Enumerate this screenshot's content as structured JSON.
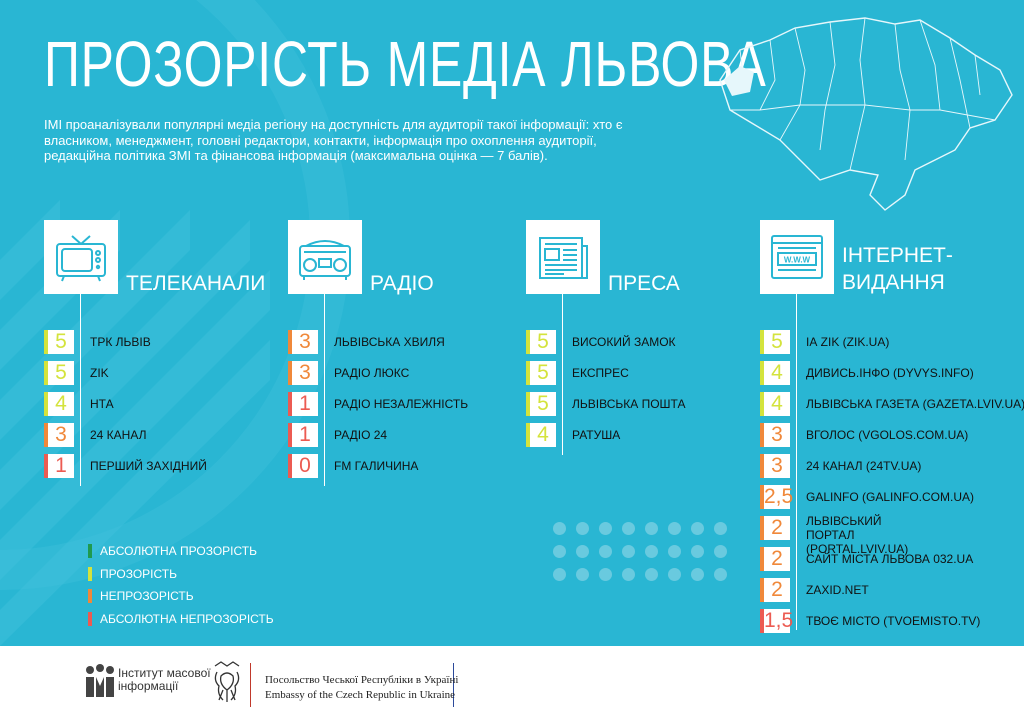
{
  "title": "ПРОЗОРІСТЬ МЕДІА ЛЬВОВА",
  "intro": "ІМІ проаналізували популярні медіа регіону на доступність для аудиторії такої інформації: хто є власником, менеджмент, головні редактори, контакти, інформація про охоплення аудиторії, редакційна політика ЗМІ та фінансова інформація (максимальна оцінка — 7 балів).",
  "colors": {
    "background": "#29b6d3",
    "absolute_transparency": "#1f9a4e",
    "transparency": "#d4e33c",
    "non_transparency": "#f0883a",
    "absolute_non_transparency": "#ec5b52"
  },
  "categories": [
    {
      "label": "ТЕЛЕКАНАЛИ",
      "icon": "tv-icon",
      "items": [
        {
          "score": "5",
          "level": "transparency",
          "name": "ТРК ЛЬВІВ"
        },
        {
          "score": "5",
          "level": "transparency",
          "name": "ZIK"
        },
        {
          "score": "4",
          "level": "transparency",
          "name": "НТА"
        },
        {
          "score": "3",
          "level": "non_transparency",
          "name": "24 КАНАЛ"
        },
        {
          "score": "1",
          "level": "absolute_non_transparency",
          "name": "ПЕРШИЙ ЗАХІДНИЙ"
        }
      ]
    },
    {
      "label": "РАДІО",
      "icon": "radio-icon",
      "items": [
        {
          "score": "3",
          "level": "non_transparency",
          "name": "ЛЬВІВСЬКА ХВИЛЯ"
        },
        {
          "score": "3",
          "level": "non_transparency",
          "name": "РАДІО ЛЮКС"
        },
        {
          "score": "1",
          "level": "absolute_non_transparency",
          "name": "РАДІО НЕЗАЛЕЖНІСТЬ"
        },
        {
          "score": "1",
          "level": "absolute_non_transparency",
          "name": "РАДІО 24"
        },
        {
          "score": "0",
          "level": "absolute_non_transparency",
          "name": "FM ГАЛИЧИНА"
        }
      ]
    },
    {
      "label": "ПРЕСА",
      "icon": "newspaper-icon",
      "items": [
        {
          "score": "5",
          "level": "transparency",
          "name": "ВИСОКИЙ ЗАМОК"
        },
        {
          "score": "5",
          "level": "transparency",
          "name": "ЕКСПРЕС"
        },
        {
          "score": "5",
          "level": "transparency",
          "name": "ЛЬВІВСЬКА ПОШТА"
        },
        {
          "score": "4",
          "level": "transparency",
          "name": "РАТУША"
        }
      ]
    },
    {
      "label": "ІНТЕРНЕТ-\nВИДАННЯ",
      "icon": "www-browser-icon",
      "items": [
        {
          "score": "5",
          "level": "transparency",
          "name": "ІА ZIK (ZIK.UA)"
        },
        {
          "score": "4",
          "level": "transparency",
          "name": "ДИВИСЬ.ІНФО (DYVYS.INFO)"
        },
        {
          "score": "4",
          "level": "transparency",
          "name": "ЛЬВІВСЬКА ГАЗЕТА (GAZETA.LVIV.UA)"
        },
        {
          "score": "3",
          "level": "non_transparency",
          "name": "ВГОЛОС (VGOLOS.COM.UA)"
        },
        {
          "score": "3",
          "level": "non_transparency",
          "name": "24 КАНАЛ (24TV.UA)"
        },
        {
          "score": "2,5",
          "level": "non_transparency",
          "name": "GALINFO (GALINFO.COM.UA)"
        },
        {
          "score": "2",
          "level": "non_transparency",
          "name": "ЛЬВІВСЬКИЙ ПОРТАЛ\n(PORTAL.LVIV.UA)"
        },
        {
          "score": "2",
          "level": "non_transparency",
          "name": "САЙТ МІСТА ЛЬВОВА 032.UA"
        },
        {
          "score": "2",
          "level": "non_transparency",
          "name": "ZAXID.NET"
        },
        {
          "score": "1,5",
          "level": "absolute_non_transparency",
          "name": "ТВОЄ МІСТО (TVOEMISTO.TV)"
        }
      ]
    }
  ],
  "legend": [
    {
      "level": "absolute_transparency",
      "label": "АБСОЛЮТНА ПРОЗОРІСТЬ"
    },
    {
      "level": "transparency",
      "label": "ПРОЗОРІСТЬ"
    },
    {
      "level": "non_transparency",
      "label": "НЕПРОЗОРІСТЬ"
    },
    {
      "level": "absolute_non_transparency",
      "label": "АБСОЛЮТНА НЕПРОЗОРІСТЬ"
    }
  ],
  "footer": {
    "imi_logo": "Інститут масової інформації",
    "imi_line1": "Інститут масової",
    "imi_line2": "інформації",
    "embassy_ua": "Посольство Чеської Республіки в Україні",
    "embassy_en": "Embassy of the Czech Republic in Ukraine"
  }
}
